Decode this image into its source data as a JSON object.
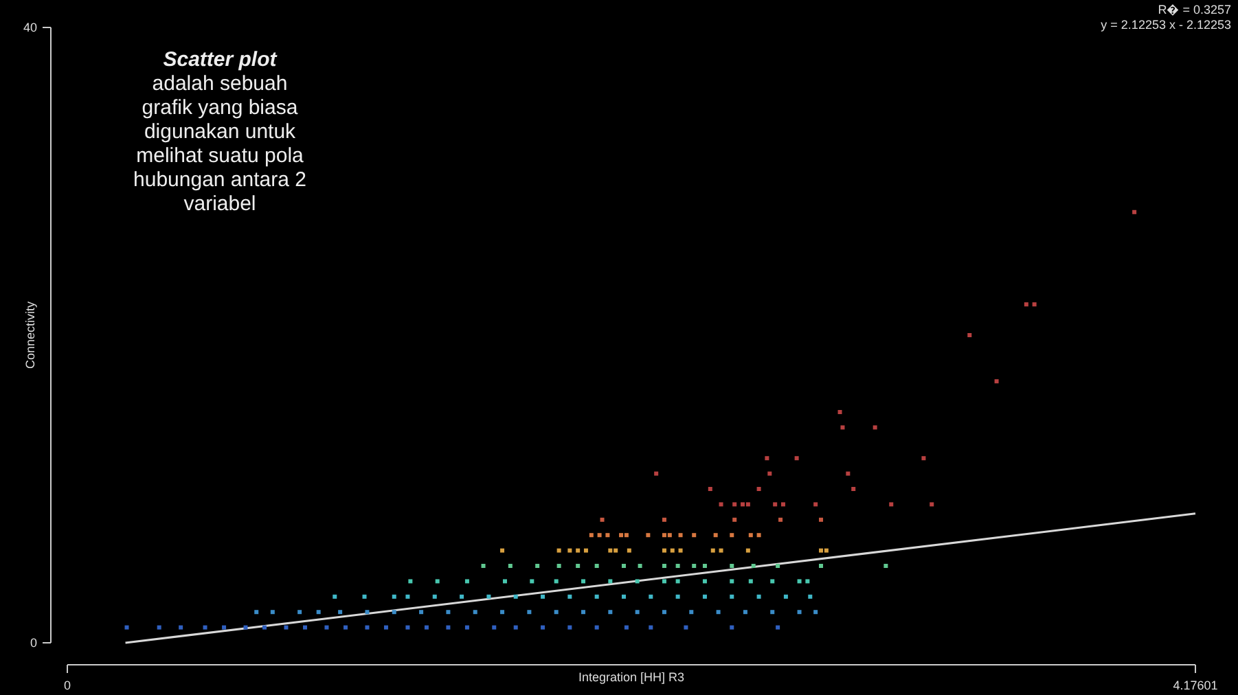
{
  "chart_data": {
    "type": "scatter",
    "xlabel": "Integration [HH] R3",
    "ylabel": "Connectivity",
    "xlim": [
      0,
      4.17601
    ],
    "ylim": [
      0,
      40
    ],
    "xticks": [
      0,
      4.17601
    ],
    "yticks": [
      0,
      40
    ],
    "grid": false,
    "marker": "square",
    "annotations": [
      "Scatter plot\nadalah sebuah\ngrafik yang biasa\ndigunakan untuk\nmelihat suatu pola\nhubungan antara 2\nvariabel",
      "R� = 0.3257",
      "y = 2.12253 x - 2.12253"
    ],
    "series": [
      {
        "color": "#3060c0",
        "x": [
          0.22,
          0.34,
          0.42,
          0.51,
          0.58,
          0.66,
          0.73,
          0.81,
          0.88,
          0.96,
          1.03,
          1.11,
          1.18,
          1.26,
          1.33,
          1.41,
          1.48,
          1.58,
          1.66,
          1.76,
          1.86,
          1.96,
          2.07,
          2.16,
          2.29,
          2.46,
          2.63
        ],
        "values": [
          1,
          1,
          1,
          1,
          1,
          1,
          1,
          1,
          1,
          1,
          1,
          1,
          1,
          1,
          1,
          1,
          1,
          1,
          1,
          1,
          1,
          1,
          1,
          1,
          1,
          1,
          1
        ]
      },
      {
        "color": "#3a8cc8",
        "x": [
          0.7,
          0.76,
          0.86,
          0.93,
          1.01,
          1.11,
          1.21,
          1.31,
          1.41,
          1.51,
          1.61,
          1.71,
          1.81,
          1.91,
          2.01,
          2.11,
          2.21,
          2.31,
          2.41,
          2.51,
          2.61,
          2.71,
          2.77
        ],
        "values": [
          2,
          2,
          2,
          2,
          2,
          2,
          2,
          2,
          2,
          2,
          2,
          2,
          2,
          2,
          2,
          2,
          2,
          2,
          2,
          2,
          2,
          2,
          2
        ]
      },
      {
        "color": "#40b8c8",
        "x": [
          0.99,
          1.1,
          1.21,
          1.26,
          1.36,
          1.46,
          1.56,
          1.66,
          1.76,
          1.86,
          1.96,
          2.06,
          2.16,
          2.26,
          2.36,
          2.46,
          2.56,
          2.66,
          2.75
        ],
        "values": [
          3,
          3,
          3,
          3,
          3,
          3,
          3,
          3,
          3,
          3,
          3,
          3,
          3,
          3,
          3,
          3,
          3,
          3,
          3
        ]
      },
      {
        "color": "#48c8b0",
        "x": [
          1.27,
          1.37,
          1.48,
          1.62,
          1.72,
          1.81,
          1.91,
          2.01,
          2.11,
          2.21,
          2.26,
          2.36,
          2.46,
          2.53,
          2.61,
          2.71,
          2.74
        ],
        "values": [
          4,
          4,
          4,
          4,
          4,
          4,
          4,
          4,
          4,
          4,
          4,
          4,
          4,
          4,
          4,
          4,
          4
        ]
      },
      {
        "color": "#60c890",
        "x": [
          1.54,
          1.64,
          1.74,
          1.82,
          1.89,
          1.96,
          2.06,
          2.12,
          2.21,
          2.26,
          2.32,
          2.36,
          2.46,
          2.54,
          2.63,
          2.79,
          3.03
        ],
        "values": [
          5,
          5,
          5,
          5,
          5,
          5,
          5,
          5,
          5,
          5,
          5,
          5,
          5,
          5,
          5,
          5,
          5
        ]
      },
      {
        "color": "#d8a040",
        "x": [
          1.61,
          1.82,
          1.86,
          1.89,
          1.92,
          2.01,
          2.03,
          2.08,
          2.21,
          2.24,
          2.27,
          2.39,
          2.42,
          2.52,
          2.79,
          2.81
        ],
        "values": [
          6,
          6,
          6,
          6,
          6,
          6,
          6,
          6,
          6,
          6,
          6,
          6,
          6,
          6,
          6,
          6
        ]
      },
      {
        "color": "#d87840",
        "x": [
          1.94,
          1.97,
          2.0,
          2.05,
          2.07,
          2.15,
          2.21,
          2.23,
          2.27,
          2.32,
          2.4,
          2.46,
          2.53,
          2.56
        ],
        "values": [
          7,
          7,
          7,
          7,
          7,
          7,
          7,
          7,
          7,
          7,
          7,
          7,
          7,
          7
        ]
      },
      {
        "color": "#c85840",
        "x": [
          1.98,
          2.21,
          2.47,
          2.64,
          2.79
        ],
        "values": [
          8,
          8,
          8,
          8,
          8
        ]
      },
      {
        "color": "#b84040",
        "x": [
          2.42,
          2.47,
          2.5,
          2.52,
          2.62,
          2.65,
          2.77,
          3.05,
          3.2,
          2.38,
          2.56,
          2.91,
          2.18,
          2.6,
          2.89,
          2.59,
          2.7,
          3.17,
          2.87,
          2.99,
          2.86,
          3.44,
          3.34,
          3.55,
          3.58,
          3.95
        ],
        "values": [
          9,
          9,
          9,
          9,
          9,
          9,
          9,
          9,
          9,
          10,
          10,
          10,
          11,
          11,
          11,
          12,
          12,
          12,
          14,
          14,
          15,
          17,
          20,
          22,
          22,
          28
        ]
      },
      {
        "type": "line",
        "color": "#d8d8d8",
        "x": [
          0.215,
          4.17601
        ],
        "values": [
          0,
          8.4
        ],
        "marker": "none",
        "line_style": "solid"
      }
    ]
  }
}
